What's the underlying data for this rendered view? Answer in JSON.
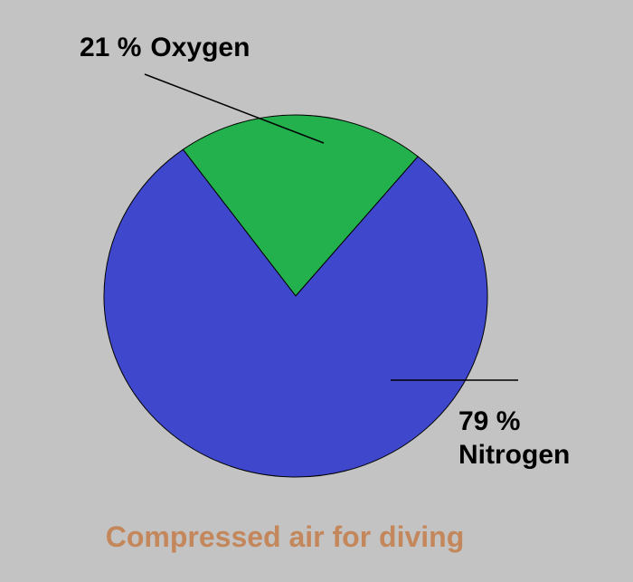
{
  "chart_data": {
    "type": "pie",
    "title": "Compressed air for diving",
    "categories": [
      "Oxygen",
      "Nitrogen"
    ],
    "values": [
      21,
      79
    ],
    "value_labels": [
      "21 %",
      "79 %"
    ],
    "colors": [
      "#22b14c",
      "#3f48cc"
    ]
  }
}
